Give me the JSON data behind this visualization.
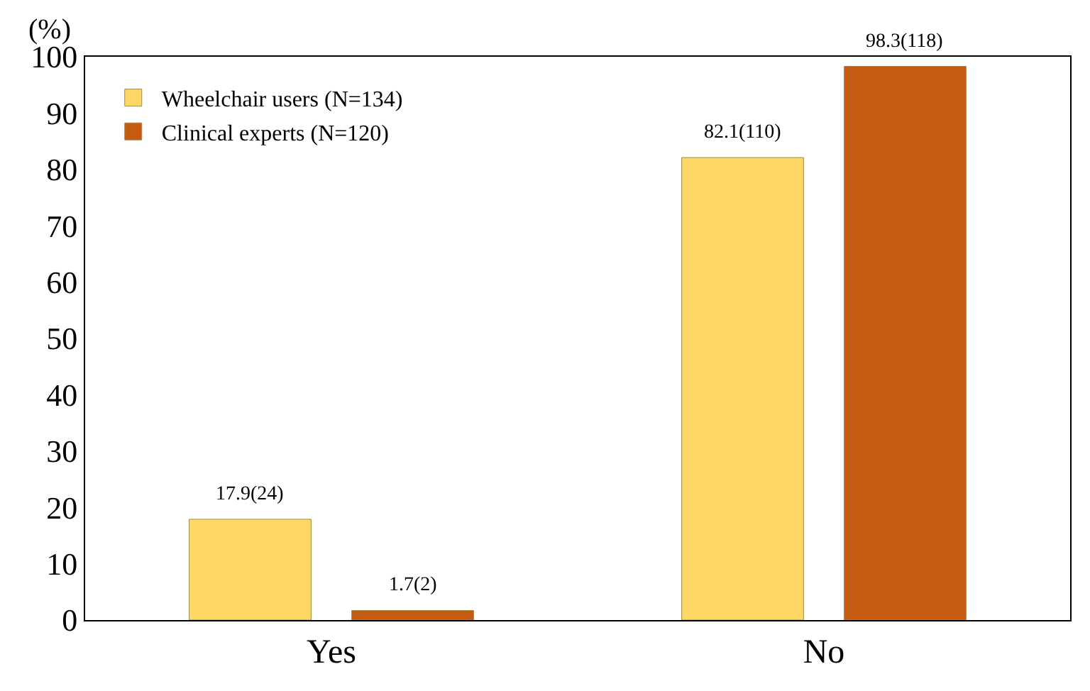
{
  "chart_data": {
    "type": "bar",
    "ylabel": "(%)",
    "categories": [
      "Yes",
      "No"
    ],
    "ylim": [
      0,
      100
    ],
    "yticks": [
      0,
      10,
      20,
      30,
      40,
      50,
      60,
      70,
      80,
      90,
      100
    ],
    "grid": false,
    "legend": "top left",
    "series": [
      {
        "name": "Wheelchair users (N=134)",
        "color": "#fdd867",
        "values": [
          17.9,
          82.1
        ],
        "value_labels": [
          "17.9(24)",
          "82.1(110)"
        ]
      },
      {
        "name": "Clinical experts (N=120)",
        "color": "#c55a11",
        "values": [
          1.7,
          98.3
        ],
        "value_labels": [
          "1.7(2)",
          "98.3(118)"
        ]
      }
    ]
  }
}
